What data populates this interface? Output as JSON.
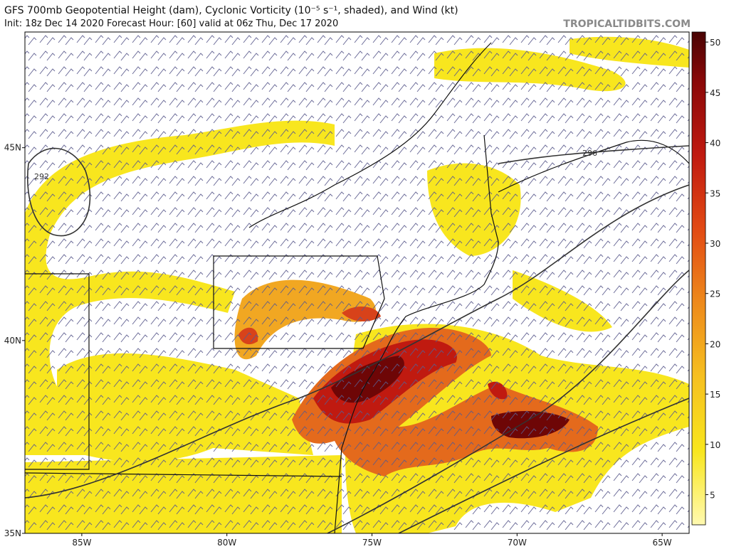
{
  "header": {
    "title": "GFS 700mb Geopotential Height (dam), Cyclonic Vorticity (10⁻⁵ s⁻¹, shaded), and Wind (kt)",
    "subtitle": "Init: 18z Dec 14 2020   Forecast Hour: [60]   valid at 06z Thu, Dec 17 2020",
    "brand": "TROPICALTIDBITS.COM"
  },
  "map": {
    "xlim": [
      -86.96,
      -64.07
    ],
    "ylim": [
      35,
      48
    ],
    "xticks": [
      {
        "value": -85,
        "label": "85W"
      },
      {
        "value": -80,
        "label": "80W"
      },
      {
        "value": -75,
        "label": "75W"
      },
      {
        "value": -70,
        "label": "70W"
      },
      {
        "value": -65,
        "label": "65W"
      }
    ],
    "yticks": [
      {
        "value": 35,
        "label": "35N"
      },
      {
        "value": 40,
        "label": "40N"
      },
      {
        "value": 45,
        "label": "45N"
      }
    ],
    "contour_labels": [
      "292",
      "296"
    ]
  },
  "colorbar": {
    "ylim": [
      2,
      51
    ],
    "yticks": [
      5,
      10,
      15,
      20,
      25,
      30,
      35,
      40,
      45,
      50
    ]
  }
}
